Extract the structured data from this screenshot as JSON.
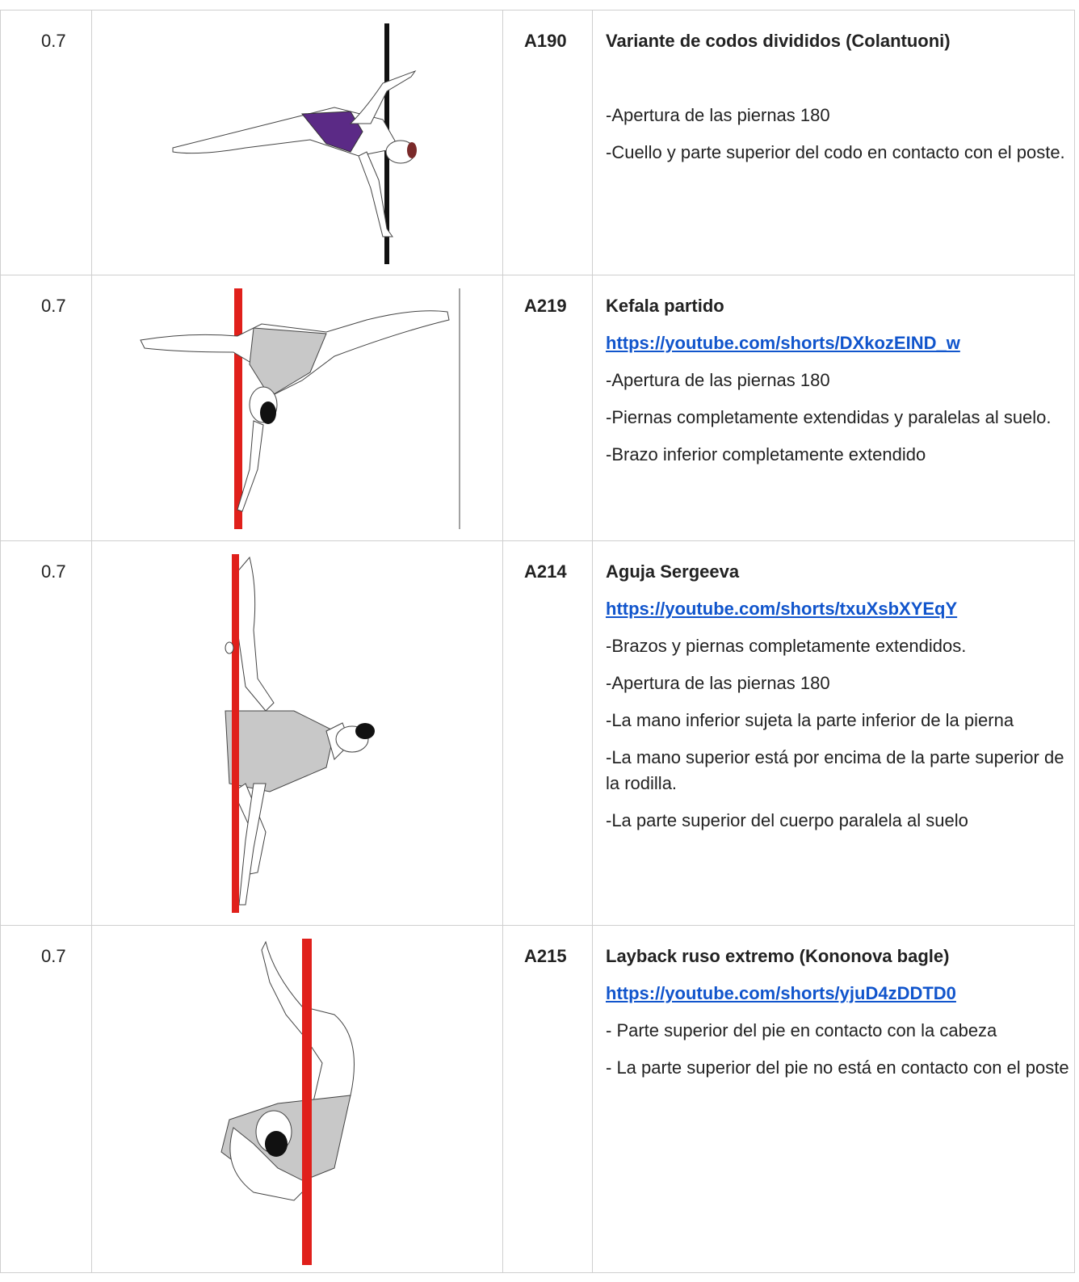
{
  "rows": [
    {
      "score": "0.7",
      "code": "A190",
      "title": "Variante de codos divididos (Colantuoni)",
      "bullets": [
        "-Apertura de las piernas 180",
        "-Cuello y parte superior del codo en contacto con el poste."
      ]
    },
    {
      "score": "0.7",
      "code": "A219",
      "title": "Kefala partido",
      "link": "https://youtube.com/shorts/DXkozEIND_w",
      "bullets": [
        "-Apertura de las piernas 180",
        "-Piernas completamente extendidas y paralelas al suelo.",
        "-Brazo inferior completamente extendido"
      ]
    },
    {
      "score": "0.7",
      "code": "A214",
      "title": "Aguja Sergeeva",
      "link": "https://youtube.com/shorts/txuXsbXYEqY",
      "bullets": [
        "-Brazos y piernas completamente extendidos.",
        "-Apertura de las piernas 180",
        "-La mano inferior sujeta la parte inferior de la pierna",
        "-La mano superior está por encima de la parte superior de la rodilla.",
        "-La parte superior del cuerpo paralela al suelo"
      ]
    },
    {
      "score": "0.7",
      "code": "A215",
      "title": "Layback ruso extremo (Kononova bagle)",
      "link": "https://youtube.com/shorts/yjuD4zDDTD0",
      "bullets": [
        "- Parte superior del pie en contacto con la cabeza",
        "- La parte superior del pie no está en contacto con el poste"
      ]
    }
  ]
}
